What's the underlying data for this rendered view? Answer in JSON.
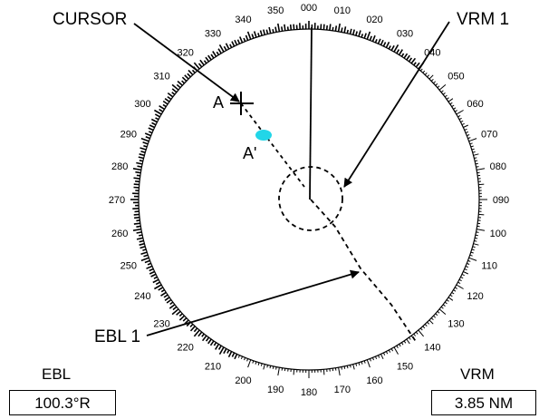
{
  "callouts": {
    "cursor": "CURSOR",
    "vrm1": "VRM 1",
    "ebl1": "EBL 1"
  },
  "points": {
    "a": "A",
    "a_prime": "A'"
  },
  "bearing_labels": [
    "000",
    "010",
    "020",
    "030",
    "040",
    "050",
    "060",
    "070",
    "080",
    "090",
    "100",
    "110",
    "120",
    "130",
    "140",
    "150",
    "160",
    "170",
    "180",
    "190",
    "200",
    "210",
    "220",
    "230",
    "240",
    "250",
    "260",
    "270",
    "280",
    "290",
    "300",
    "310",
    "320",
    "330",
    "340",
    "350"
  ],
  "readouts": {
    "ebl": {
      "label": "EBL",
      "value": "100.3°R"
    },
    "vrm": {
      "label": "VRM",
      "value": "3.85 NM"
    }
  },
  "colors": {
    "target": "#22d6e8",
    "ink": "#000000"
  }
}
